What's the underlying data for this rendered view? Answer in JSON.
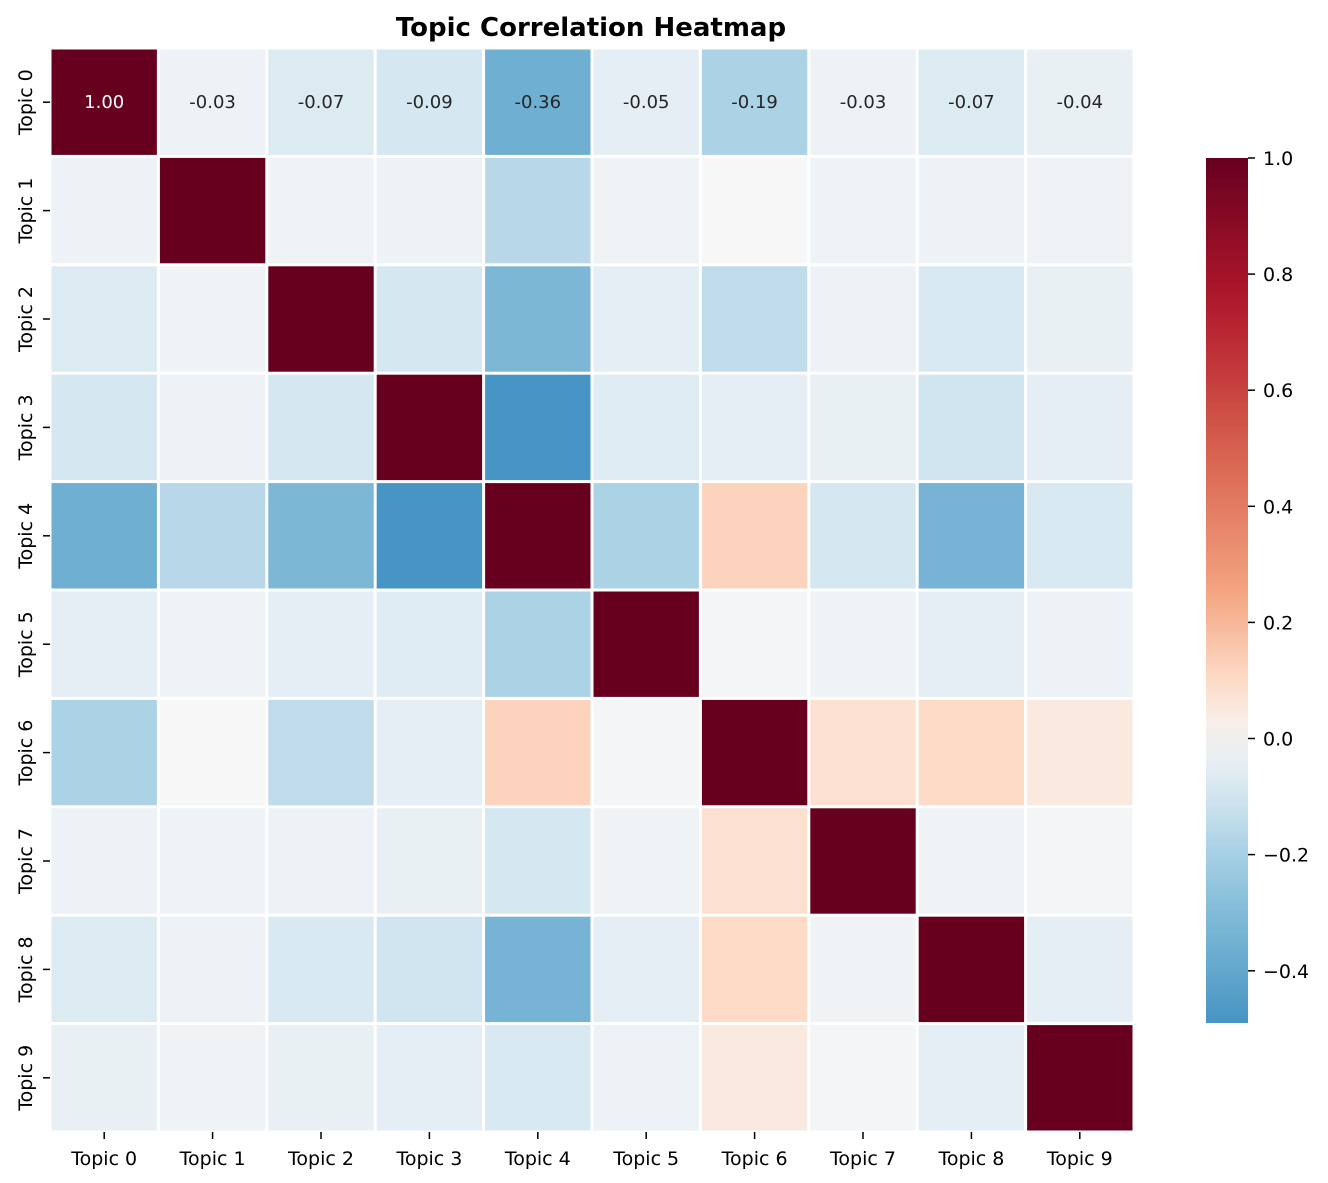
{
  "chart_data": {
    "type": "heatmap",
    "title": "Topic Correlation Heatmap",
    "x_categories": [
      "Topic 0",
      "Topic 1",
      "Topic 2",
      "Topic 3",
      "Topic 4",
      "Topic 5",
      "Topic 6",
      "Topic 7",
      "Topic 8",
      "Topic 9"
    ],
    "y_categories": [
      "Topic 0",
      "Topic 1",
      "Topic 2",
      "Topic 3",
      "Topic 4",
      "Topic 5",
      "Topic 6",
      "Topic 7",
      "Topic 8",
      "Topic 9"
    ],
    "values": [
      [
        1.0,
        -0.03,
        -0.07,
        -0.09,
        -0.36,
        -0.05,
        -0.19,
        -0.03,
        -0.07,
        -0.04
      ],
      [
        -0.03,
        1.0,
        -0.02,
        -0.03,
        -0.16,
        -0.02,
        0.0,
        -0.02,
        -0.03,
        -0.02
      ],
      [
        -0.07,
        -0.02,
        1.0,
        -0.09,
        -0.32,
        -0.05,
        -0.14,
        -0.03,
        -0.08,
        -0.04
      ],
      [
        -0.09,
        -0.03,
        -0.09,
        1.0,
        -0.49,
        -0.06,
        -0.05,
        -0.04,
        -0.1,
        -0.05
      ],
      [
        -0.36,
        -0.16,
        -0.32,
        -0.49,
        1.0,
        -0.19,
        0.12,
        -0.09,
        -0.34,
        -0.08
      ],
      [
        -0.05,
        -0.02,
        -0.05,
        -0.06,
        -0.19,
        1.0,
        -0.01,
        -0.02,
        -0.05,
        -0.03
      ],
      [
        -0.19,
        0.0,
        -0.14,
        -0.05,
        0.12,
        -0.01,
        1.0,
        0.08,
        0.1,
        0.05
      ],
      [
        -0.03,
        -0.02,
        -0.03,
        -0.04,
        -0.09,
        -0.02,
        0.08,
        1.0,
        -0.02,
        -0.01
      ],
      [
        -0.07,
        -0.03,
        -0.08,
        -0.1,
        -0.34,
        -0.05,
        0.1,
        -0.02,
        1.0,
        -0.05
      ],
      [
        -0.04,
        -0.02,
        -0.04,
        -0.05,
        -0.08,
        -0.03,
        0.05,
        -0.01,
        -0.05,
        1.0
      ]
    ],
    "annotated_row": 0,
    "annotated_labels": [
      "1.00",
      "-0.03",
      "-0.07",
      "-0.09",
      "-0.36",
      "-0.05",
      "-0.19",
      "-0.03",
      "-0.07",
      "-0.04"
    ],
    "colormap": "RdBu_r",
    "vmin": -1.0,
    "vmax": 1.0,
    "colorbar": {
      "range": [
        -0.49,
        1.0
      ],
      "ticks": [
        1.0,
        0.8,
        0.6,
        0.4,
        0.2,
        0.0,
        -0.2,
        -0.4
      ],
      "tick_labels": [
        "1.0",
        "0.8",
        "0.6",
        "0.4",
        "0.2",
        "0.0",
        "−0.2",
        "−0.4"
      ]
    },
    "cell_border_color": "#ffffff",
    "grid": false
  }
}
